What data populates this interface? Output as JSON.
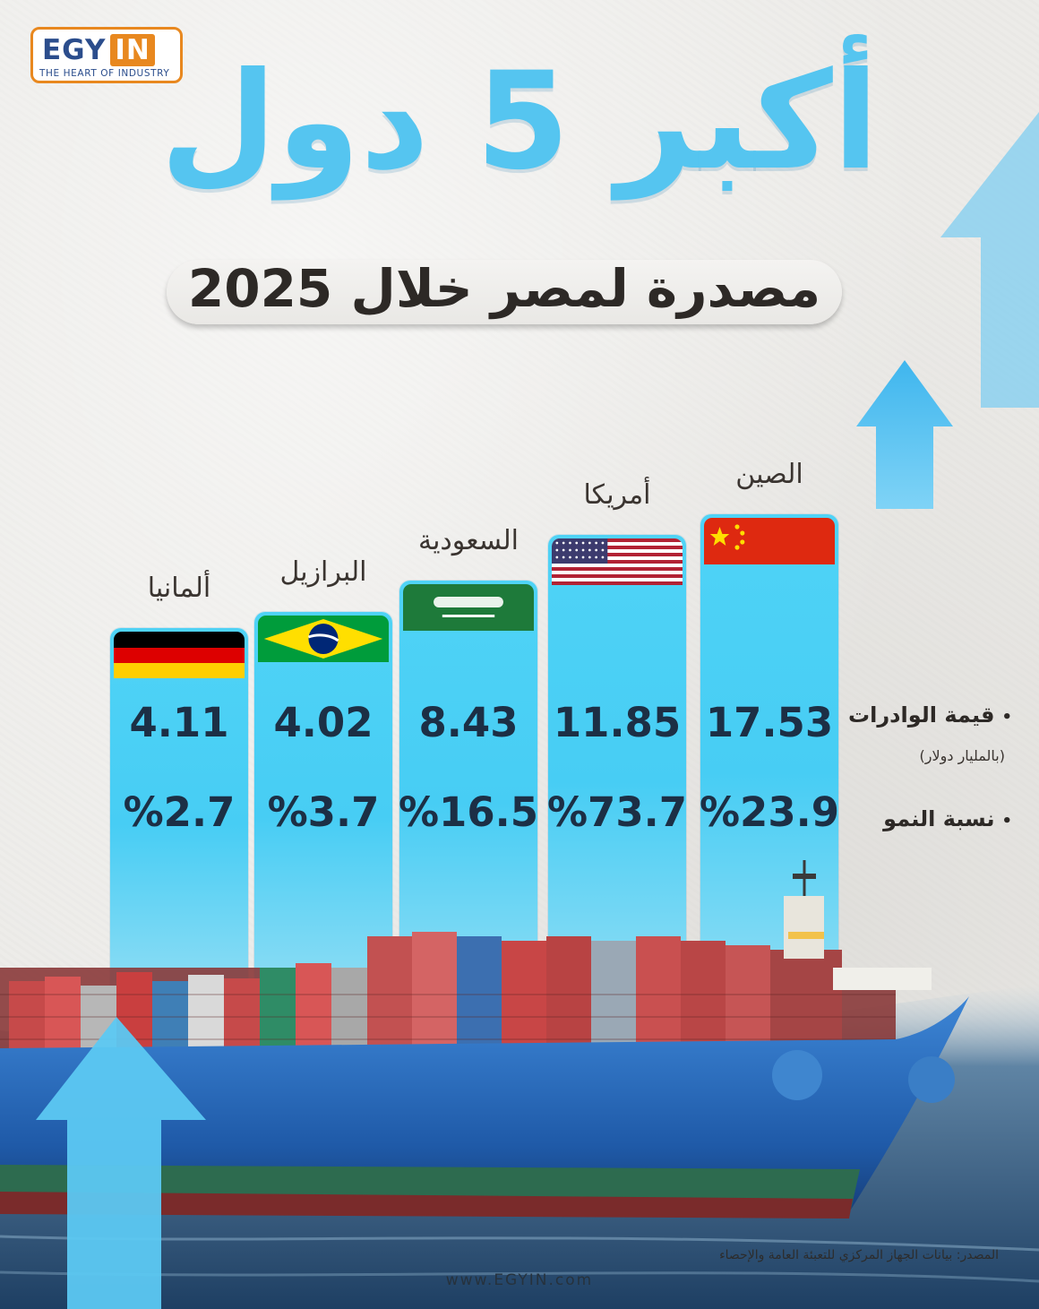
{
  "logo": {
    "brand_left": "EGY",
    "brand_right": "IN",
    "tagline": "THE HEART OF INDUSTRY"
  },
  "title": "أكبر 5 دول",
  "subtitle": "مصدرة لمصر خلال 2025",
  "row_labels": {
    "imports": "قيمة الوادرات",
    "imports_unit": "(بالمليار دولار)",
    "growth": "نسبة النمو",
    "bullet": "•"
  },
  "chart_data": {
    "type": "bar",
    "categories": [
      "الصين",
      "أمريكا",
      "السعودية",
      "البرازيل",
      "ألمانيا"
    ],
    "values": [
      17.53,
      11.85,
      8.43,
      4.02,
      4.11
    ],
    "value_labels": [
      "17.53",
      "11.85",
      "8.43",
      "4.02",
      "4.11"
    ],
    "growth_labels": [
      "%23.9",
      "%73.7",
      "%16.5",
      "%3.7",
      "%2.7"
    ],
    "flags": [
      "china",
      "usa",
      "saudi-arabia",
      "brazil",
      "germany"
    ],
    "title": "",
    "xlabel": "",
    "ylabel": ""
  },
  "colors": {
    "accent": "#55c5f0",
    "bar": "#4fd3f6",
    "value_text": "#1c2f45",
    "logo_orange": "#e8881f",
    "logo_blue": "#2b4d8c"
  },
  "footer": {
    "source": "المصدر: بيانات الجهاز المركزي للتعبئة العامة والإحصاء",
    "website": "www.EGYIN.com"
  }
}
